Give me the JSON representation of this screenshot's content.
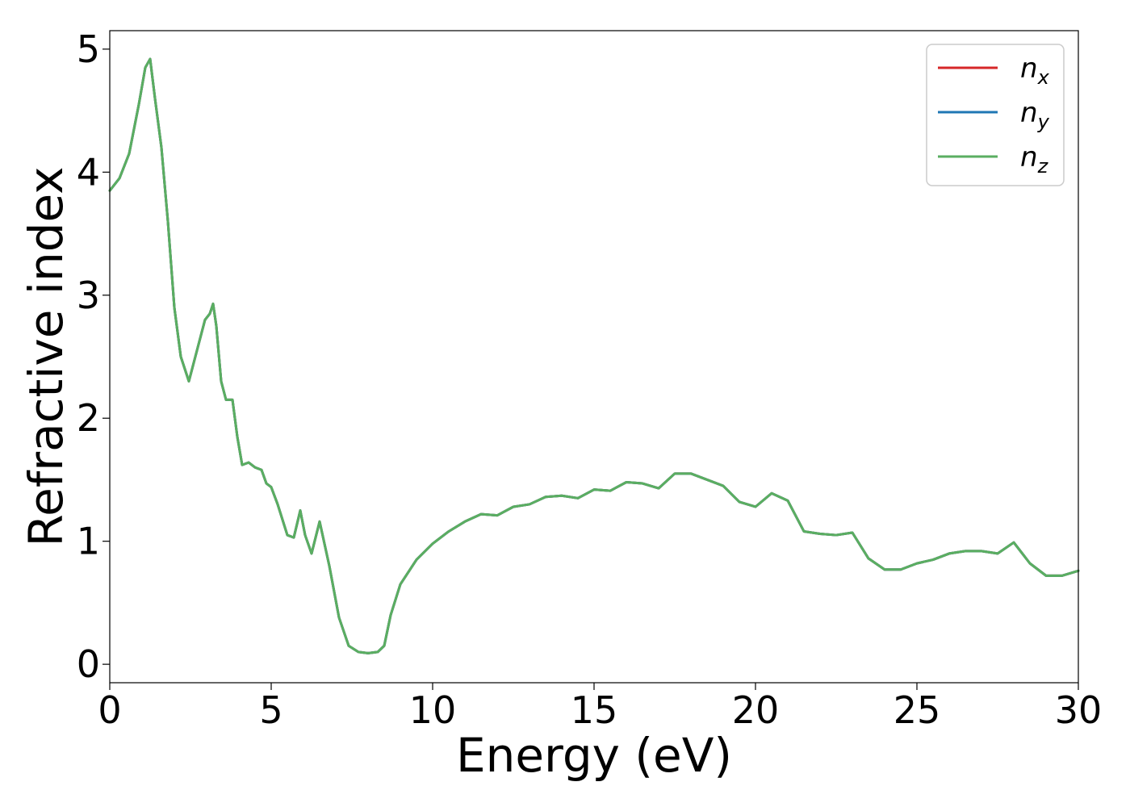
{
  "chart_data": {
    "type": "line",
    "xlabel": "Energy (eV)",
    "ylabel": "Refractive index",
    "xlim": [
      0,
      30
    ],
    "ylim": [
      -0.15,
      5.15
    ],
    "xticks": [
      "0",
      "5",
      "10",
      "15",
      "20",
      "25",
      "30"
    ],
    "yticks": [
      "0",
      "1",
      "2",
      "3",
      "4",
      "5"
    ],
    "grid": false,
    "legend_position": "top-right",
    "series": [
      {
        "name": "n",
        "subscript": "x",
        "color": "#d62728",
        "x": [
          0,
          0.3,
          0.6,
          0.9,
          1.1,
          1.25,
          1.4,
          1.6,
          1.8,
          2.0,
          2.2,
          2.45,
          2.7,
          2.95,
          3.1,
          3.2,
          3.3,
          3.45,
          3.6,
          3.8,
          3.95,
          4.1,
          4.3,
          4.5,
          4.7,
          4.85,
          5.0,
          5.2,
          5.5,
          5.7,
          5.9,
          6.05,
          6.25,
          6.5,
          6.8,
          7.1,
          7.4,
          7.7,
          8.0,
          8.3,
          8.5,
          8.7,
          9.0,
          9.5,
          10.0,
          10.5,
          11.0,
          11.5,
          12.0,
          12.5,
          13.0,
          13.5,
          14.0,
          14.5,
          15.0,
          15.5,
          16.0,
          16.5,
          17.0,
          17.5,
          18.0,
          18.5,
          19.0,
          19.5,
          20.0,
          20.5,
          21.0,
          21.5,
          22.0,
          22.5,
          23.0,
          23.5,
          24.0,
          24.5,
          25.0,
          25.5,
          26.0,
          26.5,
          27.0,
          27.5,
          28.0,
          28.5,
          29.0,
          29.5,
          30.0
        ],
        "y": [
          3.85,
          3.95,
          4.15,
          4.55,
          4.85,
          4.92,
          4.6,
          4.2,
          3.6,
          2.9,
          2.5,
          2.3,
          2.55,
          2.8,
          2.85,
          2.93,
          2.75,
          2.3,
          2.15,
          2.15,
          1.85,
          1.62,
          1.64,
          1.6,
          1.58,
          1.47,
          1.44,
          1.3,
          1.05,
          1.03,
          1.25,
          1.05,
          0.9,
          1.16,
          0.8,
          0.38,
          0.15,
          0.1,
          0.09,
          0.1,
          0.15,
          0.4,
          0.65,
          0.85,
          0.98,
          1.08,
          1.16,
          1.22,
          1.21,
          1.28,
          1.3,
          1.36,
          1.37,
          1.35,
          1.42,
          1.41,
          1.48,
          1.47,
          1.43,
          1.55,
          1.55,
          1.5,
          1.45,
          1.32,
          1.28,
          1.39,
          1.33,
          1.08,
          1.06,
          1.05,
          1.07,
          0.86,
          0.77,
          0.77,
          0.82,
          0.85,
          0.9,
          0.92,
          0.92,
          0.9,
          0.99,
          0.82,
          0.72,
          0.72,
          0.76
        ]
      },
      {
        "name": "n",
        "subscript": "y",
        "color": "#1f77b4",
        "x": [
          0,
          0.3,
          0.6,
          0.9,
          1.1,
          1.25,
          1.4,
          1.6,
          1.8,
          2.0,
          2.2,
          2.45,
          2.7,
          2.95,
          3.1,
          3.2,
          3.3,
          3.45,
          3.6,
          3.8,
          3.95,
          4.1,
          4.3,
          4.5,
          4.7,
          4.85,
          5.0,
          5.2,
          5.5,
          5.7,
          5.9,
          6.05,
          6.25,
          6.5,
          6.8,
          7.1,
          7.4,
          7.7,
          8.0,
          8.3,
          8.5,
          8.7,
          9.0,
          9.5,
          10.0,
          10.5,
          11.0,
          11.5,
          12.0,
          12.5,
          13.0,
          13.5,
          14.0,
          14.5,
          15.0,
          15.5,
          16.0,
          16.5,
          17.0,
          17.5,
          18.0,
          18.5,
          19.0,
          19.5,
          20.0,
          20.5,
          21.0,
          21.5,
          22.0,
          22.5,
          23.0,
          23.5,
          24.0,
          24.5,
          25.0,
          25.5,
          26.0,
          26.5,
          27.0,
          27.5,
          28.0,
          28.5,
          29.0,
          29.5,
          30.0
        ],
        "y": [
          3.85,
          3.95,
          4.15,
          4.55,
          4.85,
          4.92,
          4.6,
          4.2,
          3.6,
          2.9,
          2.5,
          2.3,
          2.55,
          2.8,
          2.85,
          2.93,
          2.75,
          2.3,
          2.15,
          2.15,
          1.85,
          1.62,
          1.64,
          1.6,
          1.58,
          1.47,
          1.44,
          1.3,
          1.05,
          1.03,
          1.25,
          1.05,
          0.9,
          1.16,
          0.8,
          0.38,
          0.15,
          0.1,
          0.09,
          0.1,
          0.15,
          0.4,
          0.65,
          0.85,
          0.98,
          1.08,
          1.16,
          1.22,
          1.21,
          1.28,
          1.3,
          1.36,
          1.37,
          1.35,
          1.42,
          1.41,
          1.48,
          1.47,
          1.43,
          1.55,
          1.55,
          1.5,
          1.45,
          1.32,
          1.28,
          1.39,
          1.33,
          1.08,
          1.06,
          1.05,
          1.07,
          0.86,
          0.77,
          0.77,
          0.82,
          0.85,
          0.9,
          0.92,
          0.92,
          0.9,
          0.99,
          0.82,
          0.72,
          0.72,
          0.76
        ]
      },
      {
        "name": "n",
        "subscript": "z",
        "color": "#5aae61",
        "x": [
          0,
          0.3,
          0.6,
          0.9,
          1.1,
          1.25,
          1.4,
          1.6,
          1.8,
          2.0,
          2.2,
          2.45,
          2.7,
          2.95,
          3.1,
          3.2,
          3.3,
          3.45,
          3.6,
          3.8,
          3.95,
          4.1,
          4.3,
          4.5,
          4.7,
          4.85,
          5.0,
          5.2,
          5.5,
          5.7,
          5.9,
          6.05,
          6.25,
          6.5,
          6.8,
          7.1,
          7.4,
          7.7,
          8.0,
          8.3,
          8.5,
          8.7,
          9.0,
          9.5,
          10.0,
          10.5,
          11.0,
          11.5,
          12.0,
          12.5,
          13.0,
          13.5,
          14.0,
          14.5,
          15.0,
          15.5,
          16.0,
          16.5,
          17.0,
          17.5,
          18.0,
          18.5,
          19.0,
          19.5,
          20.0,
          20.5,
          21.0,
          21.5,
          22.0,
          22.5,
          23.0,
          23.5,
          24.0,
          24.5,
          25.0,
          25.5,
          26.0,
          26.5,
          27.0,
          27.5,
          28.0,
          28.5,
          29.0,
          29.5,
          30.0
        ],
        "y": [
          3.85,
          3.95,
          4.15,
          4.55,
          4.85,
          4.92,
          4.6,
          4.2,
          3.6,
          2.9,
          2.5,
          2.3,
          2.55,
          2.8,
          2.85,
          2.93,
          2.75,
          2.3,
          2.15,
          2.15,
          1.85,
          1.62,
          1.64,
          1.6,
          1.58,
          1.47,
          1.44,
          1.3,
          1.05,
          1.03,
          1.25,
          1.05,
          0.9,
          1.16,
          0.8,
          0.38,
          0.15,
          0.1,
          0.09,
          0.1,
          0.15,
          0.4,
          0.65,
          0.85,
          0.98,
          1.08,
          1.16,
          1.22,
          1.21,
          1.28,
          1.3,
          1.36,
          1.37,
          1.35,
          1.42,
          1.41,
          1.48,
          1.47,
          1.43,
          1.55,
          1.55,
          1.5,
          1.45,
          1.32,
          1.28,
          1.39,
          1.33,
          1.08,
          1.06,
          1.05,
          1.07,
          0.86,
          0.77,
          0.77,
          0.82,
          0.85,
          0.9,
          0.92,
          0.92,
          0.9,
          0.99,
          0.82,
          0.72,
          0.72,
          0.76
        ]
      }
    ]
  }
}
